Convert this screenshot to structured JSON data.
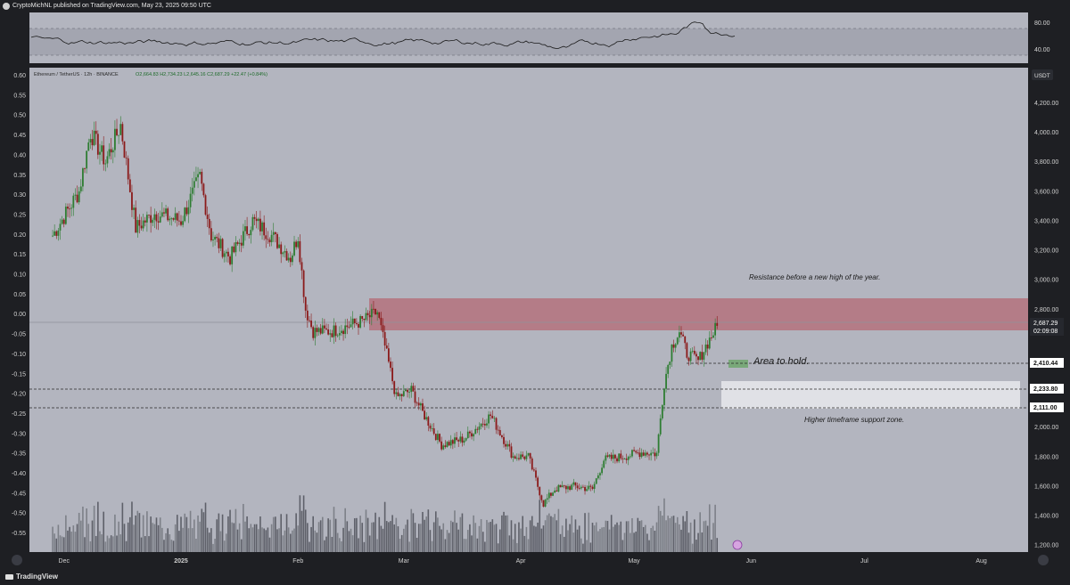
{
  "header": {
    "author_line": "CryptoMichNL published on TradingView.com, May 23, 2025 09:50 UTC"
  },
  "footer": {
    "brand": "TradingView"
  },
  "symbol": {
    "legend": "Ethereum / TetherUS · 12h · BINANCE",
    "ohlc": "O2,664.83  H2,734.23  L2,645.16  C2,687.29  +22.47 (+0.84%)"
  },
  "rsi_panel": {
    "ticks": [
      80,
      40
    ],
    "tick_labels": [
      "80.00",
      "40.00"
    ]
  },
  "left_axis_labels": [
    "0.60",
    "0.55",
    "0.50",
    "0.45",
    "0.40",
    "0.35",
    "0.30",
    "0.25",
    "0.20",
    "0.15",
    "0.10",
    "0.05",
    "0.00",
    "-0.05",
    "-0.10",
    "-0.15",
    "-0.20",
    "-0.25",
    "-0.30",
    "-0.35",
    "-0.40",
    "-0.45",
    "-0.50",
    "-0.55"
  ],
  "right_axis": {
    "currency": "USDT",
    "ticks": [
      4200,
      4000,
      3800,
      3600,
      3400,
      3200,
      3000,
      2800,
      2000,
      1800,
      1600,
      1400,
      1200
    ],
    "tick_labels": [
      "4,200.00",
      "4,000.00",
      "3,800.00",
      "3,600.00",
      "3,400.00",
      "3,200.00",
      "3,000.00",
      "2,800.00",
      "2,000.00",
      "1,800.00",
      "1,600.00",
      "1,400.00",
      "1,200.00"
    ]
  },
  "price_tags": {
    "last_price": "2,687.29",
    "countdown": "02:09:08",
    "level_1": "2,410.44",
    "level_2": "2,233.80",
    "level_3": "2,111.00"
  },
  "annotations": {
    "resistance": "Resistance before a new high of the year.",
    "hold": "Area to hold.",
    "support": "Higher timeframe support zone."
  },
  "x_axis": {
    "labels": [
      "Dec",
      "2025",
      "Feb",
      "Mar",
      "Apr",
      "May",
      "Jun",
      "Jul",
      "Aug"
    ]
  },
  "colors": {
    "plot_bg": "#b3b5bf",
    "up": "#2e7d32",
    "down": "#8b1a1a",
    "resistance_zone": "#b4727c",
    "support_zone": "#e4e5ea",
    "hold_zone": "#79a879"
  },
  "chart_data": {
    "type": "candlestick",
    "symbol": "ETH/USDT",
    "interval": "12h",
    "ylim": [
      1150,
      4450
    ],
    "key_points": [
      {
        "x": "Nov 28",
        "y": 3300
      },
      {
        "x": "Dec 05",
        "y": 3600
      },
      {
        "x": "Dec 08",
        "y": 4000
      },
      {
        "x": "Dec 12",
        "y": 3800
      },
      {
        "x": "Dec 16",
        "y": 4050
      },
      {
        "x": "Dec 20",
        "y": 3350
      },
      {
        "x": "Dec 25",
        "y": 3450
      },
      {
        "x": "Jan 01",
        "y": 3400
      },
      {
        "x": "Jan 06",
        "y": 3700
      },
      {
        "x": "Jan 09",
        "y": 3300
      },
      {
        "x": "Jan 14",
        "y": 3150
      },
      {
        "x": "Jan 20",
        "y": 3400
      },
      {
        "x": "Jan 25",
        "y": 3300
      },
      {
        "x": "Jan 30",
        "y": 3150
      },
      {
        "x": "Feb 01",
        "y": 3300
      },
      {
        "x": "Feb 03",
        "y": 2800
      },
      {
        "x": "Feb 05",
        "y": 2650
      },
      {
        "x": "Feb 10",
        "y": 2650
      },
      {
        "x": "Feb 18",
        "y": 2720
      },
      {
        "x": "Feb 22",
        "y": 2780
      },
      {
        "x": "Feb 24",
        "y": 2550
      },
      {
        "x": "Feb 27",
        "y": 2200
      },
      {
        "x": "Mar 03",
        "y": 2250
      },
      {
        "x": "Mar 06",
        "y": 2100
      },
      {
        "x": "Mar 11",
        "y": 1880
      },
      {
        "x": "Mar 17",
        "y": 1920
      },
      {
        "x": "Mar 24",
        "y": 2080
      },
      {
        "x": "Mar 30",
        "y": 1800
      },
      {
        "x": "Apr 03",
        "y": 1800
      },
      {
        "x": "Apr 07",
        "y": 1480
      },
      {
        "x": "Apr 10",
        "y": 1580
      },
      {
        "x": "Apr 15",
        "y": 1600
      },
      {
        "x": "Apr 20",
        "y": 1580
      },
      {
        "x": "Apr 23",
        "y": 1780
      },
      {
        "x": "Apr 28",
        "y": 1800
      },
      {
        "x": "May 03",
        "y": 1830
      },
      {
        "x": "May 07",
        "y": 1820
      },
      {
        "x": "May 09",
        "y": 2300
      },
      {
        "x": "May 11",
        "y": 2550
      },
      {
        "x": "May 13",
        "y": 2650
      },
      {
        "x": "May 15",
        "y": 2500
      },
      {
        "x": "May 18",
        "y": 2450
      },
      {
        "x": "May 20",
        "y": 2550
      },
      {
        "x": "May 23",
        "y": 2687.29
      }
    ],
    "levels": [
      {
        "label": "2,410.44",
        "y": 2410.44
      },
      {
        "label": "2,233.80",
        "y": 2233.8
      },
      {
        "label": "2,111.00",
        "y": 2111.0
      }
    ],
    "zones": [
      {
        "name": "Resistance before a new high of the year.",
        "from": 2640,
        "to": 2840
      },
      {
        "name": "Higher timeframe support zone.",
        "from": 2111,
        "to": 2290
      },
      {
        "name": "Area to hold.",
        "from": 2400,
        "to": 2440
      }
    ]
  }
}
